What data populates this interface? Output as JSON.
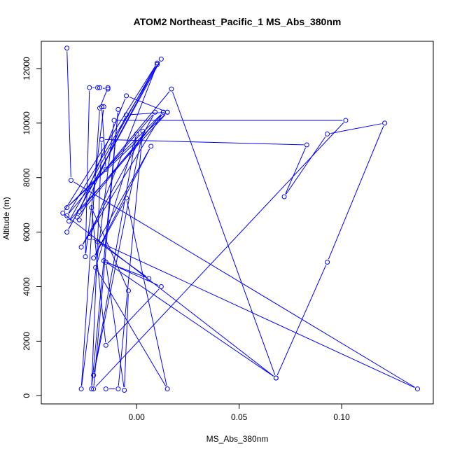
{
  "chart_data": {
    "type": "line",
    "title": "ATOM2 Northeast_Pacific_1 MS_Abs_380nm",
    "xlabel": "MS_Abs_380nm",
    "ylabel": "Altitude (m)",
    "xlim": [
      -0.0465,
      0.1447
    ],
    "ylim": [
      -300,
      13000
    ],
    "x_ticks": [
      0.0,
      0.05,
      0.1
    ],
    "x_tick_labels": [
      "0.00",
      "0.05",
      "0.10"
    ],
    "y_ticks": [
      0,
      2000,
      4000,
      6000,
      8000,
      10000,
      12000
    ],
    "y_tick_labels": [
      "0",
      "2000",
      "4000",
      "6000",
      "8000",
      "10000",
      "12000"
    ],
    "grid": false,
    "legend": "none",
    "colors": {
      "series": "#0000ff",
      "axis": "#000000",
      "background": "#ffffff"
    },
    "series": [
      {
        "points": [
          {
            "x": -0.034,
            "y": 12750
          },
          {
            "x": -0.032,
            "y": 7900
          },
          {
            "x": 0.137,
            "y": 250
          },
          {
            "x": -0.023,
            "y": 5800
          },
          {
            "x": 0.01,
            "y": 12150
          },
          {
            "x": -0.034,
            "y": 6000
          },
          {
            "x": 0.012,
            "y": 12350
          },
          {
            "x": -0.034,
            "y": 6600
          },
          {
            "x": 0.017,
            "y": 11250
          },
          {
            "x": 0.068,
            "y": 650
          },
          {
            "x": -0.036,
            "y": 6700
          },
          {
            "x": 0.01,
            "y": 12200
          },
          {
            "x": -0.033,
            "y": 6400
          },
          {
            "x": 0.015,
            "y": 10400
          },
          {
            "x": -0.034,
            "y": 6900
          },
          {
            "x": 0.013,
            "y": 10400
          },
          {
            "x": -0.028,
            "y": 6750
          },
          {
            "x": -0.005,
            "y": 11000
          },
          {
            "x": 0.015,
            "y": 10400
          },
          {
            "x": -0.005,
            "y": 10300
          },
          {
            "x": -0.028,
            "y": 6450
          },
          {
            "x": -0.029,
            "y": 6550
          },
          {
            "x": 0.013,
            "y": 10400
          },
          {
            "x": -0.027,
            "y": 5450
          },
          {
            "x": 0.009,
            "y": 10400
          },
          {
            "x": -0.015,
            "y": 8300
          },
          {
            "x": -0.017,
            "y": 10600
          },
          {
            "x": -0.016,
            "y": 10600
          },
          {
            "x": -0.025,
            "y": 5100
          },
          {
            "x": -0.023,
            "y": 11300
          },
          {
            "x": -0.019,
            "y": 11300
          },
          {
            "x": -0.018,
            "y": 11300
          },
          {
            "x": -0.014,
            "y": 11250
          },
          {
            "x": -0.014,
            "y": 11300
          },
          {
            "x": -0.018,
            "y": 10550
          },
          {
            "x": -0.027,
            "y": 250
          },
          {
            "x": -0.011,
            "y": 10100
          },
          {
            "x": 0.102,
            "y": 10100
          },
          {
            "x": -0.021,
            "y": 250
          },
          {
            "x": -0.009,
            "y": 10500
          },
          {
            "x": -0.022,
            "y": 250
          },
          {
            "x": -0.017,
            "y": 9400
          },
          {
            "x": 0.083,
            "y": 9200
          },
          {
            "x": 0.072,
            "y": 7300
          },
          {
            "x": 0.093,
            "y": 9600
          },
          {
            "x": 0.121,
            "y": 10000
          },
          {
            "x": 0.093,
            "y": 4900
          },
          {
            "x": 0.068,
            "y": 650
          },
          {
            "x": -0.016,
            "y": 4950
          },
          {
            "x": 0.012,
            "y": 4000
          },
          {
            "x": -0.015,
            "y": 1850
          },
          {
            "x": -0.022,
            "y": 6900
          },
          {
            "x": -0.004,
            "y": 3850
          },
          {
            "x": -0.006,
            "y": 200
          },
          {
            "x": -0.015,
            "y": 4900
          },
          {
            "x": 0.006,
            "y": 4300
          },
          {
            "x": -0.019,
            "y": 5650
          },
          {
            "x": 0.007,
            "y": 9150
          },
          {
            "x": -0.021,
            "y": 5050
          },
          {
            "x": -0.005,
            "y": 7250
          },
          {
            "x": 0.015,
            "y": 250
          },
          {
            "x": -0.02,
            "y": 4700
          },
          {
            "x": 0.0,
            "y": 9600
          },
          {
            "x": -0.021,
            "y": 750
          },
          {
            "x": 0.003,
            "y": 9700
          },
          {
            "x": -0.009,
            "y": 250
          },
          {
            "x": -0.015,
            "y": 250
          }
        ]
      }
    ]
  }
}
